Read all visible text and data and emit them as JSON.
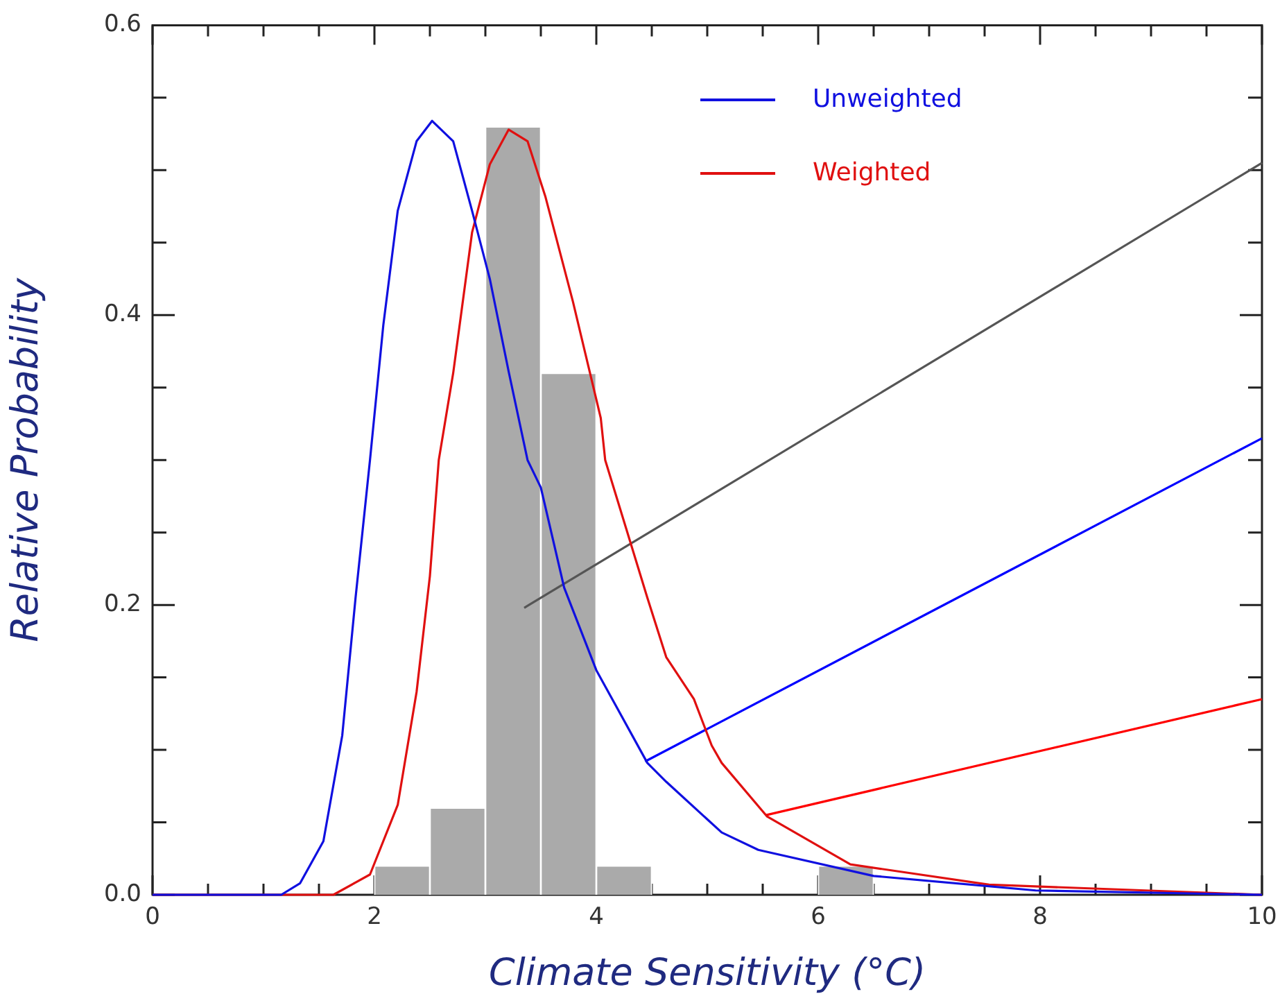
{
  "chart_data": {
    "type": "histogram",
    "xlabel": "Climate Sensitivity (°C)",
    "ylabel": "Relative Probability",
    "bins": [
      2,
      2.5,
      3,
      3.5,
      4,
      4.5,
      5,
      5.5,
      6,
      6.5,
      7
    ],
    "values": [
      0.02,
      0.06,
      0.53,
      0.36,
      0.02,
      0,
      0,
      0,
      0.02,
      0
    ],
    "color": "#aaaaaa",
    "series": [
      {
        "name": "Unweighted",
        "type": "line",
        "color": "#1010e0",
        "x": [
          0,
          1.16,
          1.33,
          1.54,
          1.71,
          1.83,
          1.96,
          2.08,
          2.21,
          2.38,
          2.52,
          2.71,
          2.88,
          3.04,
          3.21,
          3.38,
          3.5,
          3.71,
          4.0,
          4.46,
          4.63,
          5.13,
          5.46,
          6.5,
          7.96,
          10
        ],
        "values": [
          0,
          0,
          0.008,
          0.037,
          0.11,
          0.205,
          0.3,
          0.393,
          0.472,
          0.52,
          0.534,
          0.52,
          0.472,
          0.425,
          0.361,
          0.3,
          0.281,
          0.212,
          0.155,
          0.091,
          0.078,
          0.043,
          0.031,
          0.013,
          0.003,
          0
        ]
      },
      {
        "name": "Weighted",
        "type": "line",
        "color": "#e01010",
        "x": [
          0,
          1.63,
          1.96,
          2.21,
          2.38,
          2.5,
          2.58,
          2.71,
          2.88,
          3.04,
          3.21,
          3.38,
          3.54,
          3.79,
          4.04,
          4.08,
          4.46,
          4.63,
          4.88,
          5.04,
          5.13,
          5.54,
          6.29,
          7.54,
          10
        ],
        "values": [
          0,
          0,
          0.014,
          0.062,
          0.14,
          0.22,
          0.3,
          0.36,
          0.457,
          0.504,
          0.528,
          0.52,
          0.482,
          0.409,
          0.329,
          0.3,
          0.205,
          0.164,
          0.135,
          0.103,
          0.091,
          0.054,
          0.021,
          0.007,
          0
        ]
      },
      {
        "type": "line",
        "color": "#555555",
        "x": [
          3.35,
          10
        ],
        "values": [
          0.198,
          0.505
        ]
      },
      {
        "type": "line",
        "color": "#0000ff",
        "x": [
          4.44,
          10
        ],
        "values": [
          0.092,
          0.315
        ]
      },
      {
        "type": "line",
        "color": "#ff0000",
        "x": [
          5.53,
          10
        ],
        "values": [
          0.055,
          0.135
        ]
      }
    ],
    "xlim": [
      0,
      10
    ],
    "xticks": [
      0,
      {
        "value": 0.5,
        "label": null
      },
      {
        "value": 1,
        "label": null
      },
      {
        "value": 1.5,
        "label": null
      },
      2,
      {
        "value": 2.5,
        "label": null
      },
      {
        "value": 3,
        "label": null
      },
      {
        "value": 3.5,
        "label": null
      },
      4,
      {
        "value": 4.5,
        "label": null
      },
      {
        "value": 5,
        "label": null
      },
      {
        "value": 5.5,
        "label": null
      },
      6,
      {
        "value": 6.5,
        "label": null
      },
      {
        "value": 7,
        "label": null
      },
      {
        "value": 7.5,
        "label": null
      },
      8,
      {
        "value": 8.5,
        "label": null
      },
      {
        "value": 9,
        "label": null
      },
      {
        "value": 9.5,
        "label": null
      },
      10
    ],
    "ylim": [
      0,
      0.6
    ],
    "yticks": [
      {
        "value": 0,
        "label": "0.0"
      },
      {
        "value": 0.05,
        "label": null
      },
      {
        "value": 0.1,
        "label": null
      },
      {
        "value": 0.15,
        "label": null
      },
      0.2,
      {
        "value": 0.25,
        "label": null
      },
      {
        "value": 0.3,
        "label": null
      },
      {
        "value": 0.35,
        "label": null
      },
      0.4,
      {
        "value": 0.45,
        "label": null
      },
      {
        "value": 0.5,
        "label": null
      },
      {
        "value": 0.55,
        "label": null
      },
      0.6
    ],
    "grid": false,
    "legend": "top right"
  }
}
